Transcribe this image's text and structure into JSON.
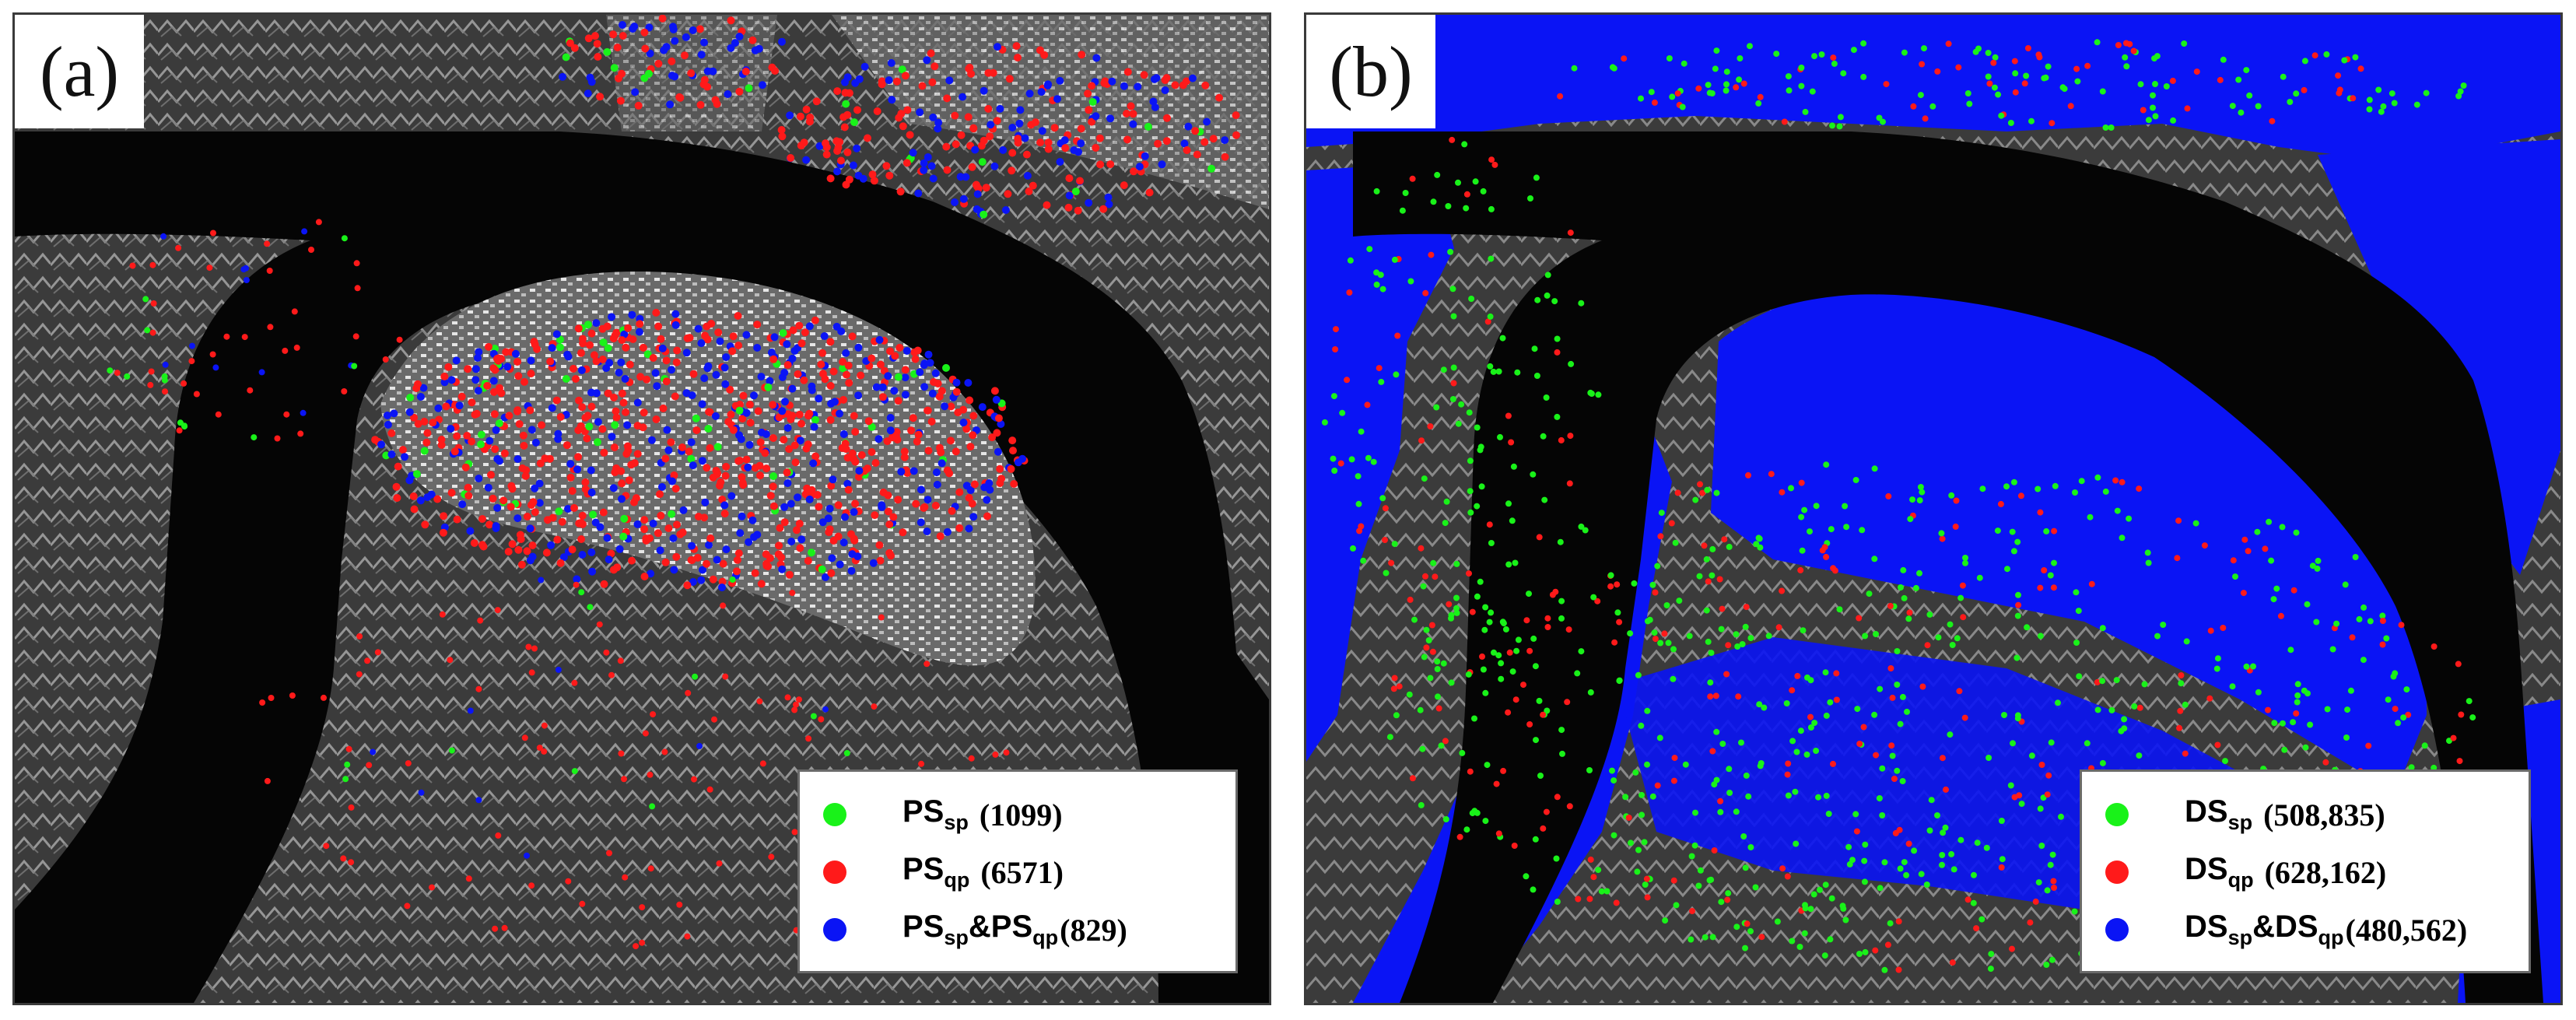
{
  "colors": {
    "green": "#19f219",
    "red": "#ff1a1a",
    "blue": "#0a14f5",
    "river": "#050505",
    "terrain": "#3a3a3a"
  },
  "panels": [
    {
      "label": "(a)",
      "legend": [
        {
          "base": "PS",
          "sub": "sp",
          "count": "(1099)",
          "color": "green"
        },
        {
          "base": "PS",
          "sub": "qp",
          "count": "(6571)",
          "color": "red"
        },
        {
          "base": "PS",
          "sub": "sp",
          "base2": "&PS",
          "sub2": "qp",
          "count": "(829)",
          "color": "blue"
        }
      ]
    },
    {
      "label": "(b)",
      "legend": [
        {
          "base": "DS",
          "sub": "sp",
          "count": "(508,835)",
          "color": "green"
        },
        {
          "base": "DS",
          "sub": "qp",
          "count": "(628,162)",
          "color": "red"
        },
        {
          "base": "DS",
          "sub": "sp",
          "base2": "&DS",
          "sub2": "qp",
          "count": "(480,562)",
          "color": "blue"
        }
      ]
    }
  ]
}
